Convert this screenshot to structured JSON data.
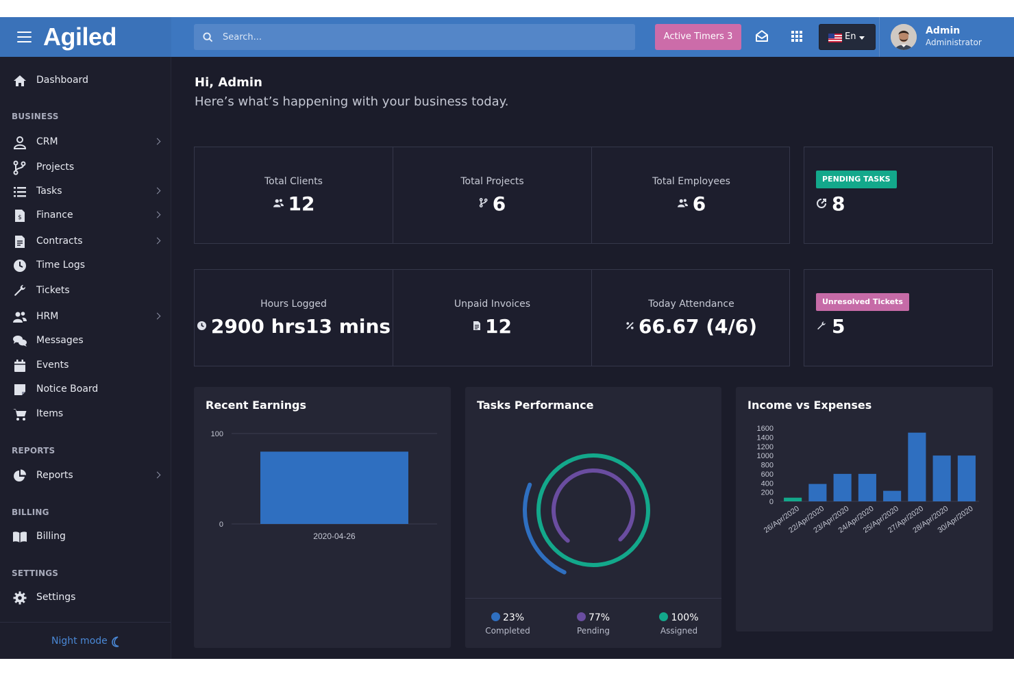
{
  "brand": {
    "name": "Agiled"
  },
  "topbar": {
    "search_placeholder": "Search...",
    "active_timers_label": "Active Timers 3",
    "language": "En",
    "user_name": "Admin",
    "user_role": "Administrator"
  },
  "sidebar": {
    "dashboard": "Dashboard",
    "sections": {
      "business": "BUSINESS",
      "reports": "REPORTS",
      "billing": "BILLING",
      "settings": "SETTINGS"
    },
    "items": {
      "crm": "CRM",
      "projects": "Projects",
      "tasks": "Tasks",
      "finance": "Finance",
      "contracts": "Contracts",
      "time_logs": "Time Logs",
      "tickets": "Tickets",
      "hrm": "HRM",
      "messages": "Messages",
      "events": "Events",
      "notice_board": "Notice Board",
      "items": "Items",
      "reports": "Reports",
      "billing": "Billing",
      "settings": "Settings"
    },
    "night_mode": "Night mode"
  },
  "greeting": {
    "title": "Hi, Admin",
    "subtitle": "Here’s what’s happening with your business today."
  },
  "stats_row1": [
    {
      "title": "Total Clients",
      "value": "12"
    },
    {
      "title": "Total Projects",
      "value": "6"
    },
    {
      "title": "Total Employees",
      "value": "6"
    }
  ],
  "pending_tasks": {
    "badge": "PENDING TASKS",
    "value": "8",
    "color": "#13a88b"
  },
  "stats_row2": [
    {
      "title": "Hours Logged",
      "value": "2900 hrs13 mins"
    },
    {
      "title": "Unpaid Invoices",
      "value": "12"
    },
    {
      "title": "Today Attendance",
      "value": "66.67 (4/6)"
    }
  ],
  "unresolved_tickets": {
    "badge": "Unresolved Tickets",
    "value": "5",
    "color": "#c66ba7"
  },
  "panels": {
    "recent_earnings": "Recent Earnings",
    "tasks_performance": "Tasks Performance",
    "income_vs_expenses": "Income vs Expenses"
  },
  "tasks_legend": [
    {
      "value": "23%",
      "label": "Completed",
      "color": "#2f6fc0"
    },
    {
      "value": "77%",
      "label": "Pending",
      "color": "#6a4da0"
    },
    {
      "value": "100%",
      "label": "Assigned",
      "color": "#13a88b"
    }
  ],
  "chart_data": [
    {
      "type": "bar",
      "title": "Recent Earnings",
      "categories": [
        "2020-04-26"
      ],
      "values": [
        80
      ],
      "ylim": [
        0,
        100
      ],
      "yticks": [
        "0",
        "100"
      ],
      "color": "#2f6fc0"
    },
    {
      "type": "pie",
      "title": "Tasks Performance",
      "labels": [
        "Completed",
        "Pending",
        "Assigned"
      ],
      "values": [
        23,
        77,
        100
      ],
      "colors": [
        "#2f6fc0",
        "#6a4da0",
        "#13a88b"
      ]
    },
    {
      "type": "bar",
      "title": "Income vs Expenses",
      "categories": [
        "26/Apr/2020",
        "22/Apr/2020",
        "23/Apr/2020",
        "24/Apr/2020",
        "25/Apr/2020",
        "27/Apr/2020",
        "28/Apr/2020",
        "30/Apr/2020"
      ],
      "series": [
        {
          "values": [
            80,
            0,
            0,
            0,
            0,
            0,
            0,
            0
          ],
          "color": "#13a88b"
        },
        {
          "values": [
            0,
            380,
            600,
            600,
            230,
            1500,
            1000,
            1000
          ],
          "color": "#2f6fc0"
        }
      ],
      "ylim": [
        0,
        1600
      ],
      "yticks": [
        "0",
        "200",
        "400",
        "600",
        "800",
        "1000",
        "1200",
        "1400",
        "1600"
      ]
    }
  ]
}
